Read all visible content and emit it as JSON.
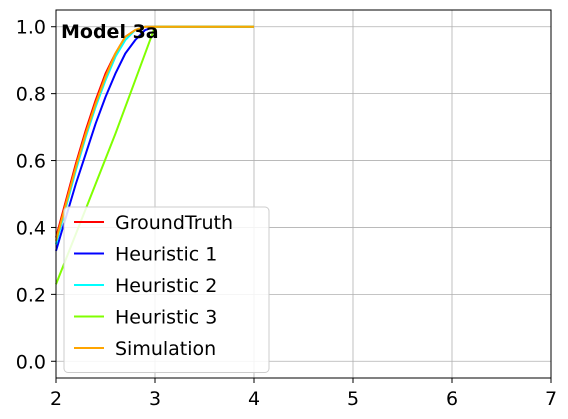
{
  "chart_data": {
    "type": "line",
    "title": "",
    "annotation": "Model 3a",
    "xlabel": "",
    "ylabel": "",
    "xlim": [
      2,
      7
    ],
    "ylim": [
      -0.05,
      1.05
    ],
    "xticks": [
      2,
      3,
      4,
      5,
      6,
      7
    ],
    "yticks": [
      0.0,
      0.2,
      0.4,
      0.6,
      0.8,
      1.0
    ],
    "grid": true,
    "legend_position": "lower-left",
    "series": [
      {
        "name": "GroundTruth",
        "color": "#ff0000",
        "x": [
          2.0,
          2.1,
          2.2,
          2.3,
          2.4,
          2.5,
          2.6,
          2.7,
          2.8,
          2.9,
          3.0,
          3.5,
          4.0
        ],
        "y": [
          0.37,
          0.48,
          0.59,
          0.69,
          0.78,
          0.86,
          0.92,
          0.97,
          0.99,
          1.0,
          1.0,
          1.0,
          1.0
        ]
      },
      {
        "name": "Heuristic 1",
        "color": "#0000ff",
        "x": [
          2.0,
          2.1,
          2.2,
          2.3,
          2.4,
          2.5,
          2.6,
          2.7,
          2.8,
          2.9,
          3.0,
          3.5,
          4.0
        ],
        "y": [
          0.33,
          0.43,
          0.53,
          0.62,
          0.71,
          0.79,
          0.86,
          0.92,
          0.96,
          0.99,
          1.0,
          1.0,
          1.0
        ]
      },
      {
        "name": "Heuristic 2",
        "color": "#00ffff",
        "x": [
          2.0,
          2.1,
          2.2,
          2.3,
          2.4,
          2.5,
          2.6,
          2.7,
          2.8,
          2.9,
          3.0,
          3.5,
          4.0
        ],
        "y": [
          0.35,
          0.46,
          0.57,
          0.67,
          0.76,
          0.84,
          0.91,
          0.96,
          0.99,
          1.0,
          1.0,
          1.0,
          1.0
        ]
      },
      {
        "name": "Heuristic 3",
        "color": "#80ff00",
        "x": [
          2.0,
          2.2,
          2.4,
          2.6,
          2.8,
          3.0,
          3.5,
          4.0
        ],
        "y": [
          0.23,
          0.38,
          0.53,
          0.68,
          0.84,
          1.0,
          1.0,
          1.0
        ]
      },
      {
        "name": "Simulation",
        "color": "#ffa500",
        "x": [
          2.0,
          2.1,
          2.2,
          2.3,
          2.4,
          2.5,
          2.6,
          2.7,
          2.8,
          2.9,
          3.0,
          3.5,
          4.0
        ],
        "y": [
          0.36,
          0.47,
          0.58,
          0.68,
          0.77,
          0.85,
          0.92,
          0.97,
          0.99,
          1.0,
          1.0,
          1.0,
          1.0
        ]
      }
    ]
  }
}
